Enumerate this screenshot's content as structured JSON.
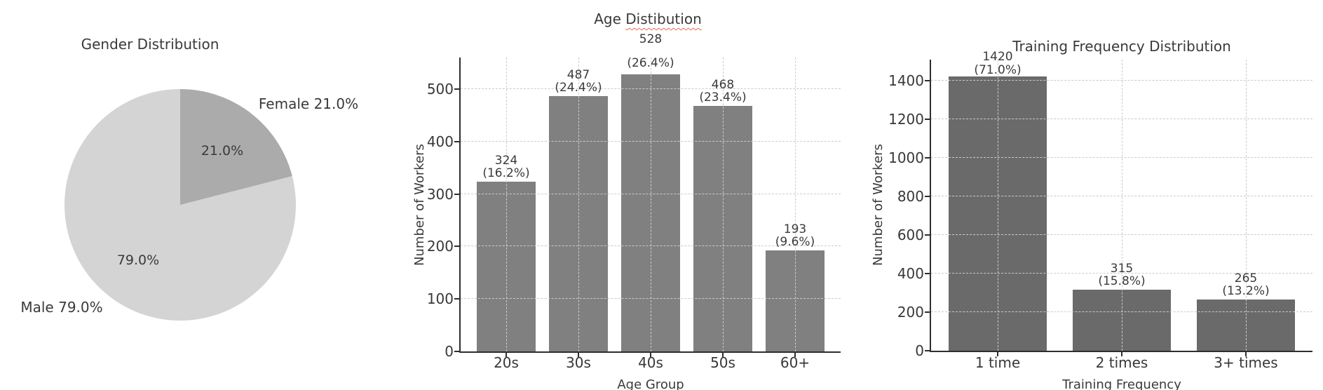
{
  "figure": {
    "background": "#ffffff",
    "text_color": "#3a3a3a",
    "axis_color": "#2e2e2e",
    "grid_color": "#cbcbcb",
    "squiggle_color": "#e8695c"
  },
  "chart_data": [
    {
      "type": "pie",
      "title": "Gender Distribution",
      "start_angle_deg": 90,
      "direction": "clockwise",
      "slices": [
        {
          "label": "Female",
          "value": 21.0,
          "pct_label": "21.0%",
          "outer_label": "Female 21.0%",
          "color": "#ababab"
        },
        {
          "label": "Male",
          "value": 79.0,
          "pct_label": "79.0%",
          "outer_label": "Male 79.0%",
          "color": "#d4d4d4"
        }
      ]
    },
    {
      "type": "bar",
      "title": "Age Distibution",
      "title_prefix": "Age ",
      "title_misspelled": "Distibution",
      "xlabel": "Age Group",
      "ylabel": "Number of Workers",
      "categories": [
        "20s",
        "30s",
        "40s",
        "50s",
        "60+"
      ],
      "values": [
        324,
        487,
        528,
        468,
        193
      ],
      "pct_labels": [
        "(16.2%)",
        "(24.4%)",
        "(26.4%)",
        "(23.4%)",
        "(9.6%)"
      ],
      "yticks": [
        0,
        100,
        200,
        300,
        400,
        500
      ],
      "ylim": [
        0,
        560
      ],
      "bar_color": "#808080",
      "grid": true,
      "legend": "none"
    },
    {
      "type": "bar",
      "title": "Training Frequency Distribution",
      "xlabel": "Training Frequency",
      "ylabel": "Number of Workers",
      "categories": [
        "1 time",
        "2 times",
        "3+ times"
      ],
      "values": [
        1420,
        315,
        265
      ],
      "pct_labels": [
        "(71.0%)",
        "(15.8%)",
        "(13.2%)"
      ],
      "yticks": [
        0,
        200,
        400,
        600,
        800,
        1000,
        1200,
        1400
      ],
      "ylim": [
        0,
        1509
      ],
      "bar_color": "#6a6a6a",
      "grid": true,
      "legend": "none"
    }
  ]
}
